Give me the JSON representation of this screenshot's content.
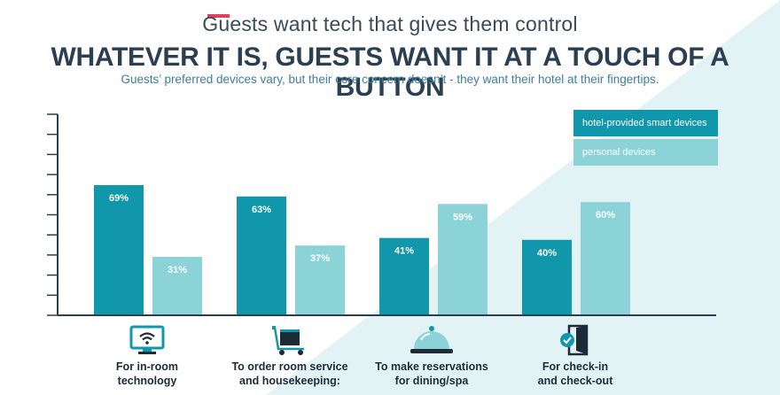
{
  "header": {
    "kicker": "Guests want tech that gives them control",
    "title": "WHATEVER IT IS, GUESTS WANT IT AT A TOUCH OF A BUTTON",
    "subtitle": "Guests’ preferred devices vary, but their core concern doesn’t - they want their hotel at their fingertips."
  },
  "colors": {
    "hotel": "#1097ac",
    "personal": "#8cd3d8",
    "axis": "#2b3f52",
    "accent": "#e0405a",
    "background_tint": "#e3f3f5"
  },
  "legend": [
    {
      "label": "hotel-provided smart devices",
      "color": "#1097ac"
    },
    {
      "label": "personal devices",
      "color": "#8cd3d8"
    }
  ],
  "categories": [
    {
      "line1": "For in-room",
      "line2": "technology",
      "icon": "wifi-monitor-icon"
    },
    {
      "line1": "To order room service",
      "line2": "and housekeeping:",
      "icon": "room-service-cart-icon"
    },
    {
      "line1": "To make reservations",
      "line2": "for dining/spa",
      "icon": "food-cloche-icon"
    },
    {
      "line1": "For check-in",
      "line2": "and check-out",
      "icon": "door-check-icon"
    }
  ],
  "chart_data": {
    "type": "bar",
    "title": "WHATEVER IT IS, GUESTS WANT IT AT A TOUCH OF A BUTTON",
    "categories": [
      "For in-room technology",
      "To order room service and housekeeping:",
      "To make reservations for dining/spa",
      "For check-in and check-out"
    ],
    "series": [
      {
        "name": "hotel-provided smart devices",
        "values": [
          69,
          63,
          41,
          40
        ],
        "labels": [
          "69%",
          "63%",
          "41%",
          "40%"
        ]
      },
      {
        "name": "personal devices",
        "values": [
          31,
          37,
          59,
          60
        ],
        "labels": [
          "31%",
          "37%",
          "59%",
          "60%"
        ]
      }
    ],
    "ylim": [
      0,
      100
    ],
    "legend_position": "top-right",
    "grid": false
  }
}
